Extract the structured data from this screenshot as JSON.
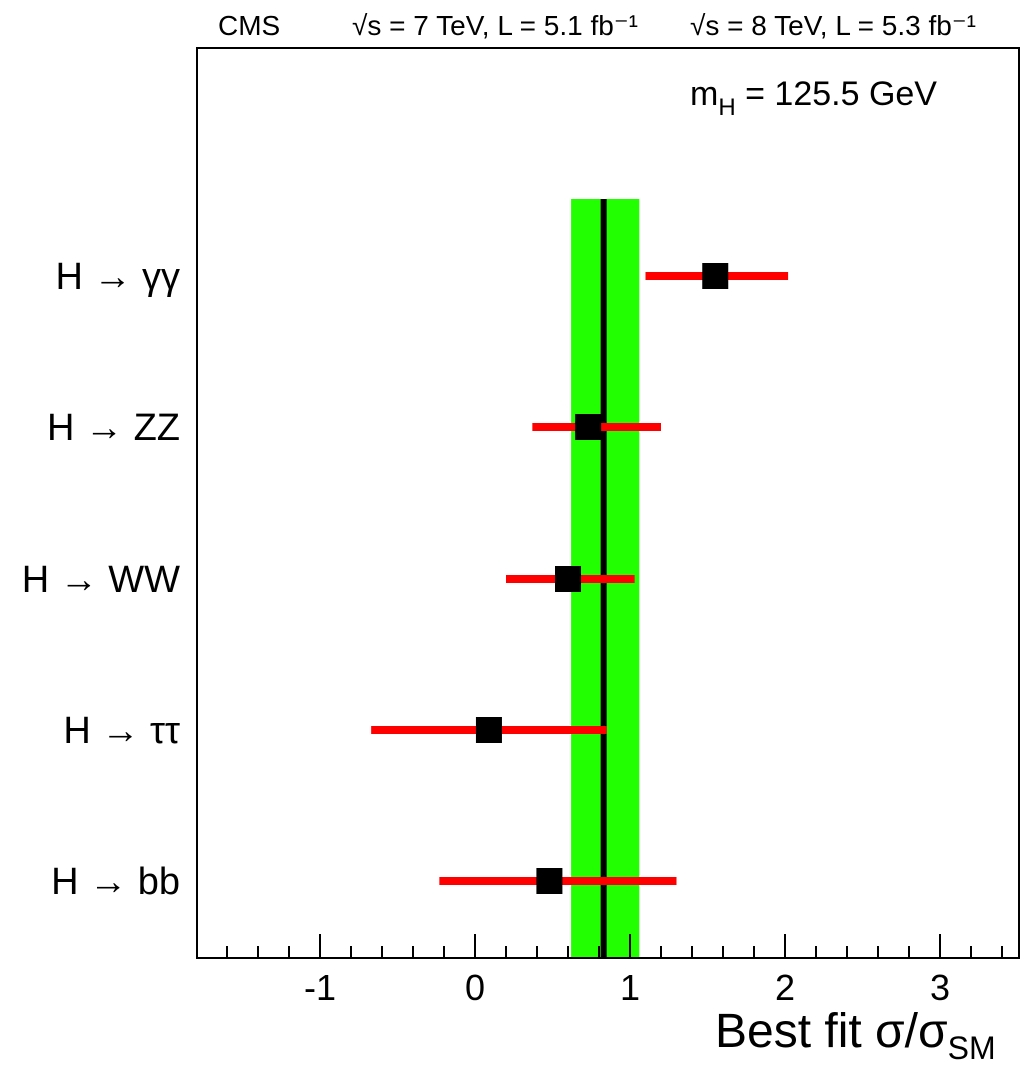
{
  "header": {
    "experiment": "CMS",
    "lumi_7tev": "√s = 7 TeV, L = 5.1 fb⁻¹",
    "lumi_8tev": "√s = 8 TeV, L = 5.3 fb⁻¹"
  },
  "annotation": "mH = 125.5 GeV",
  "chart_data": {
    "type": "scatter",
    "title": "",
    "xlabel": "Best fit σ/σSM",
    "ylabel": "",
    "xlim": [
      -1.8,
      3.5
    ],
    "x_ticks": [
      "-1",
      "0",
      "1",
      "2",
      "3"
    ],
    "grid": false,
    "legend": "none",
    "categories": [
      "H → γγ",
      "H → ZZ",
      "H → WW",
      "H → ττ",
      "H → bb"
    ],
    "series": [
      {
        "values": [
          1.55,
          0.73,
          0.6,
          0.09,
          0.48
        ],
        "err_low": [
          0.45,
          0.36,
          0.4,
          0.76,
          0.71
        ],
        "err_high": [
          0.47,
          0.47,
          0.43,
          0.76,
          0.82
        ]
      }
    ],
    "combined": {
      "value": 0.83,
      "band_low": 0.62,
      "band_high": 1.06
    },
    "colors": {
      "band": "#22ff00",
      "error_bar": "#ff0000",
      "marker": "#000000",
      "combined_line": "#000000"
    }
  }
}
